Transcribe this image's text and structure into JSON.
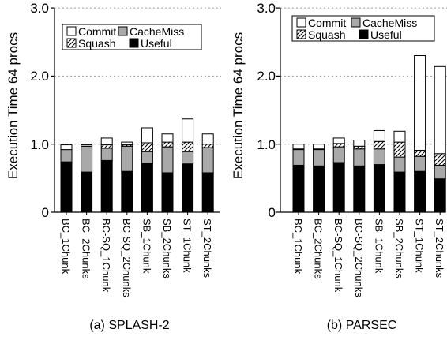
{
  "chart_data": [
    {
      "type": "bar",
      "stacked": true,
      "title": "(a) SPLASH-2",
      "ylabel": "Execution Time 64 procs",
      "ylim": [
        0,
        3.0
      ],
      "yticks": [
        "0",
        "1.0",
        "2.0",
        "3.0"
      ],
      "grid": "horizontal dotted",
      "legend_position": "top-left",
      "categories": [
        "BC_1Chunk",
        "BC_2Chunks",
        "BC-SQ_1Chunk",
        "BC-SQ_2Chunks",
        "SB_1Chunk",
        "SB_2Chunks",
        "ST_1Chunk",
        "ST_2Chunks"
      ],
      "series": [
        {
          "name": "Useful",
          "pattern": "solid-black",
          "values": [
            0.74,
            0.59,
            0.76,
            0.6,
            0.72,
            0.58,
            0.71,
            0.58
          ]
        },
        {
          "name": "CacheMiss",
          "pattern": "gray",
          "values": [
            0.18,
            0.38,
            0.18,
            0.37,
            0.17,
            0.38,
            0.18,
            0.37
          ]
        },
        {
          "name": "Squash",
          "pattern": "hatched",
          "values": [
            0.0,
            0.0,
            0.05,
            0.02,
            0.13,
            0.07,
            0.14,
            0.05
          ]
        },
        {
          "name": "Commit",
          "pattern": "white",
          "values": [
            0.07,
            0.02,
            0.1,
            0.04,
            0.22,
            0.12,
            0.34,
            0.15
          ]
        }
      ]
    },
    {
      "type": "bar",
      "stacked": true,
      "title": "(b) PARSEC",
      "ylabel": "Execution Time 64 procs",
      "ylim": [
        0,
        3.0
      ],
      "yticks": [
        "0",
        "1.0",
        "2.0",
        "3.0"
      ],
      "grid": "horizontal dotted",
      "legend_position": "top-left",
      "categories": [
        "BC_1Chunk",
        "BC_2Chunks",
        "BC-SQ_1Chunk",
        "BC-SQ_2Chunks",
        "SB_1Chunk",
        "SB_2Chunks",
        "ST_1Chunk",
        "ST_2Chunks"
      ],
      "series": [
        {
          "name": "Useful",
          "pattern": "solid-black",
          "values": [
            0.69,
            0.68,
            0.73,
            0.68,
            0.7,
            0.59,
            0.6,
            0.49
          ]
        },
        {
          "name": "CacheMiss",
          "pattern": "gray",
          "values": [
            0.23,
            0.24,
            0.23,
            0.25,
            0.23,
            0.22,
            0.22,
            0.2
          ]
        },
        {
          "name": "Squash",
          "pattern": "hatched",
          "values": [
            0.01,
            0.01,
            0.05,
            0.04,
            0.11,
            0.22,
            0.09,
            0.17
          ]
        },
        {
          "name": "Commit",
          "pattern": "white",
          "values": [
            0.07,
            0.07,
            0.08,
            0.09,
            0.16,
            0.16,
            1.39,
            1.28
          ]
        }
      ]
    }
  ]
}
